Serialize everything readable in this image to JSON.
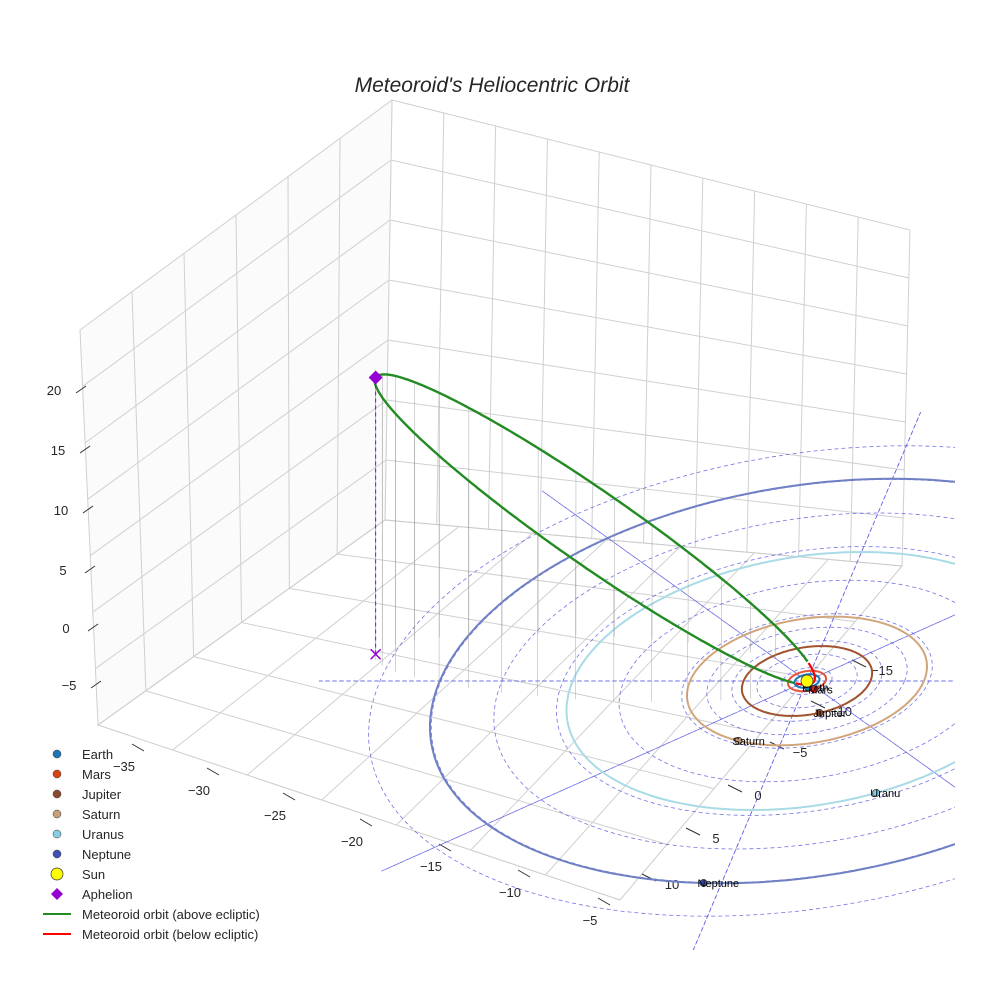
{
  "chart_data": {
    "type": "scatter",
    "projection": "3d",
    "title": "Meteoroid's Heliocentric Orbit",
    "grid": true,
    "legend_placement": "bottom-left",
    "axes": {
      "x_ticks": [
        "−35",
        "−30",
        "−25",
        "−20",
        "−15",
        "−10",
        "−5"
      ],
      "y_ticks": [
        "−15",
        "−10",
        "−5",
        "0",
        "5",
        "10"
      ],
      "z_ticks": [
        "20",
        "15",
        "10",
        "5",
        "0",
        "−5"
      ]
    },
    "planets": [
      {
        "name": "Earth",
        "label": "Earth",
        "color": "#1f77b4",
        "orbit_color": "#1f77b4",
        "orbit_radius": 1.0
      },
      {
        "name": "Mars",
        "label": "Mars",
        "color": "#d62728",
        "orbit_color": "#e6533a",
        "orbit_radius": 1.52
      },
      {
        "name": "Jupiter",
        "label": "Jupiter",
        "color": "#8c4a2f",
        "orbit_color": "#a0522d",
        "orbit_radius": 5.2
      },
      {
        "name": "Saturn",
        "label": "Saturn",
        "color": "#c8a07a",
        "orbit_color": "#d2a67c",
        "orbit_radius": 9.58
      },
      {
        "name": "Uranus",
        "label": "Uranu",
        "color": "#87cee5",
        "orbit_color": "#a9dbe6",
        "orbit_radius": 19.2
      },
      {
        "name": "Neptune",
        "label": "Neptune",
        "color": "#3f51b5",
        "orbit_color": "#6f80c4",
        "orbit_radius": 30.1
      }
    ],
    "series": [
      {
        "name": "Earth",
        "marker": "circle",
        "color": "#1f77b4"
      },
      {
        "name": "Mars",
        "marker": "circle",
        "color": "#d84315"
      },
      {
        "name": "Jupiter",
        "marker": "circle",
        "color": "#8c4a2f"
      },
      {
        "name": "Saturn",
        "marker": "circle",
        "color": "#c8a07a"
      },
      {
        "name": "Uranus",
        "marker": "circle",
        "color": "#87cee5"
      },
      {
        "name": "Neptune",
        "marker": "circle",
        "color": "#3f51b5"
      },
      {
        "name": "Sun",
        "marker": "circle-large",
        "color": "#ffff00"
      },
      {
        "name": "Aphelion",
        "marker": "diamond",
        "color": "#9400d3"
      },
      {
        "name": "Meteoroid orbit (above ecliptic)",
        "marker": "line",
        "color": "#228b22"
      },
      {
        "name": "Meteoroid orbit (below ecliptic)",
        "marker": "line",
        "color": "#ff0000"
      }
    ],
    "meteoroid": {
      "aphelion_distance": 36.5,
      "perihelion_distance": 0.6,
      "aphelion_height": 20.5,
      "below_ecliptic_color": "#ff0000",
      "above_ecliptic_color": "#228b22"
    }
  },
  "legend": {
    "items": [
      {
        "label": "Earth",
        "color": "#1f77b4",
        "marker": "circle"
      },
      {
        "label": "Mars",
        "color": "#d84315",
        "marker": "circle"
      },
      {
        "label": "Jupiter",
        "color": "#8c4a2f",
        "marker": "circle"
      },
      {
        "label": "Saturn",
        "color": "#c8a07a",
        "marker": "circle"
      },
      {
        "label": "Uranus",
        "color": "#87cee5",
        "marker": "circle"
      },
      {
        "label": "Neptune",
        "color": "#3f51b5",
        "marker": "circle"
      },
      {
        "label": "Sun",
        "color": "#ffff00",
        "marker": "sun"
      },
      {
        "label": "Aphelion",
        "color": "#9400d3",
        "marker": "diamond"
      },
      {
        "label": "Meteoroid orbit (above ecliptic)",
        "color": "#228b22",
        "marker": "line"
      },
      {
        "label": "Meteoroid orbit (below ecliptic)",
        "color": "#ff0000",
        "marker": "line"
      }
    ]
  }
}
